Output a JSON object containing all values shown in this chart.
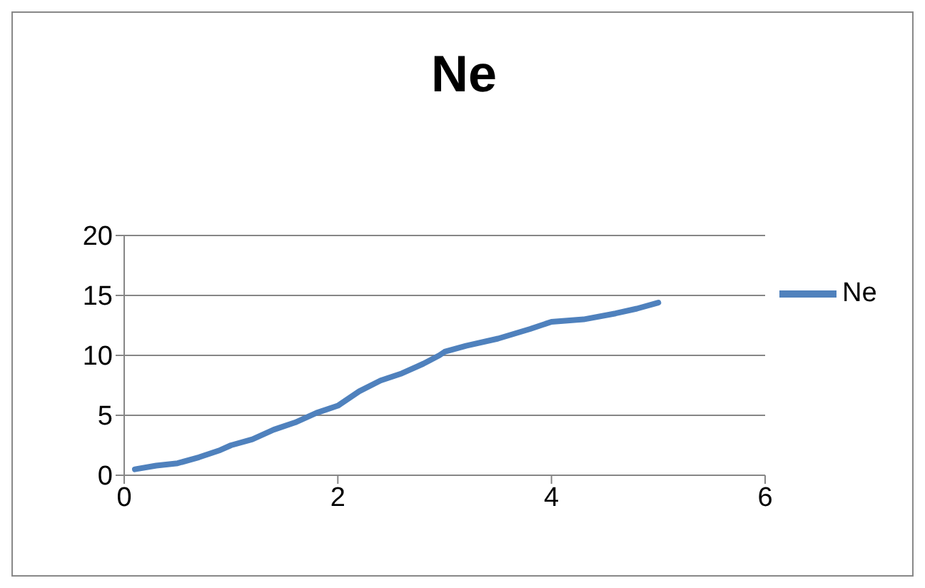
{
  "chart_data": {
    "type": "line",
    "title": "Ne",
    "x": [
      0.1,
      0.3,
      0.5,
      0.7,
      0.9,
      1.0,
      1.2,
      1.4,
      1.6,
      1.8,
      2.0,
      2.2,
      2.4,
      2.6,
      2.8,
      2.95,
      3.0,
      3.2,
      3.5,
      3.8,
      4.0,
      4.3,
      4.6,
      4.8,
      5.0
    ],
    "series": [
      {
        "name": "Ne",
        "color": "#4f81bd",
        "values": [
          0.5,
          0.8,
          1.0,
          1.5,
          2.1,
          2.5,
          3.0,
          3.8,
          4.4,
          5.2,
          5.8,
          7.0,
          7.9,
          8.5,
          9.3,
          10.0,
          10.3,
          10.8,
          11.4,
          12.2,
          12.8,
          13.0,
          13.5,
          13.9,
          14.4
        ]
      }
    ],
    "xlim": [
      0,
      6
    ],
    "xticks": [
      0,
      2,
      4,
      6
    ],
    "ylim": [
      0,
      20
    ],
    "yticks": [
      0,
      5,
      10,
      15,
      20
    ],
    "grid": "y",
    "legend": "right",
    "marker": "none",
    "line_style": "solid"
  }
}
